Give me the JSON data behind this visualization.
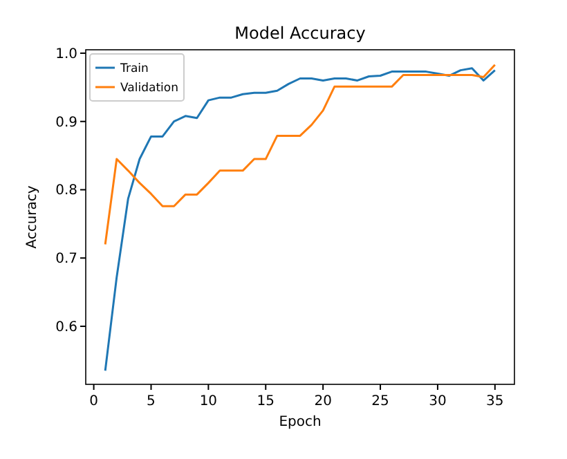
{
  "chart_data": {
    "type": "line",
    "title": "Model Accuracy",
    "xlabel": "Epoch",
    "ylabel": "Accuracy",
    "x": [
      1,
      2,
      3,
      4,
      5,
      6,
      7,
      8,
      9,
      10,
      11,
      12,
      13,
      14,
      15,
      16,
      17,
      18,
      19,
      20,
      21,
      22,
      23,
      24,
      25,
      26,
      27,
      28,
      29,
      30,
      31,
      32,
      33,
      34,
      35
    ],
    "series": [
      {
        "name": "Train",
        "color": "#1f77b4",
        "values": [
          0.535,
          0.672,
          0.787,
          0.845,
          0.878,
          0.878,
          0.9,
          0.908,
          0.905,
          0.931,
          0.935,
          0.935,
          0.94,
          0.942,
          0.942,
          0.945,
          0.955,
          0.963,
          0.963,
          0.96,
          0.963,
          0.963,
          0.96,
          0.966,
          0.967,
          0.973,
          0.973,
          0.973,
          0.973,
          0.97,
          0.967,
          0.975,
          0.978,
          0.96,
          0.975
        ]
      },
      {
        "name": "Validation",
        "color": "#ff7f0e",
        "values": [
          0.72,
          0.845,
          0.828,
          0.81,
          0.794,
          0.776,
          0.776,
          0.793,
          0.793,
          0.81,
          0.828,
          0.828,
          0.828,
          0.845,
          0.845,
          0.879,
          0.879,
          0.879,
          0.895,
          0.916,
          0.951,
          0.951,
          0.951,
          0.951,
          0.951,
          0.951,
          0.968,
          0.968,
          0.968,
          0.968,
          0.968,
          0.968,
          0.968,
          0.965,
          0.983
        ]
      }
    ],
    "xlim": [
      -0.7,
      36.7
    ],
    "ylim": [
      0.515,
      1.005
    ],
    "xticks": [
      0,
      5,
      10,
      15,
      20,
      25,
      30,
      35
    ],
    "yticks": [
      0.6,
      0.7,
      0.8,
      0.9,
      {
        "value": 1.0,
        "label": "1.0"
      }
    ],
    "legend": "top left",
    "grid": false
  }
}
